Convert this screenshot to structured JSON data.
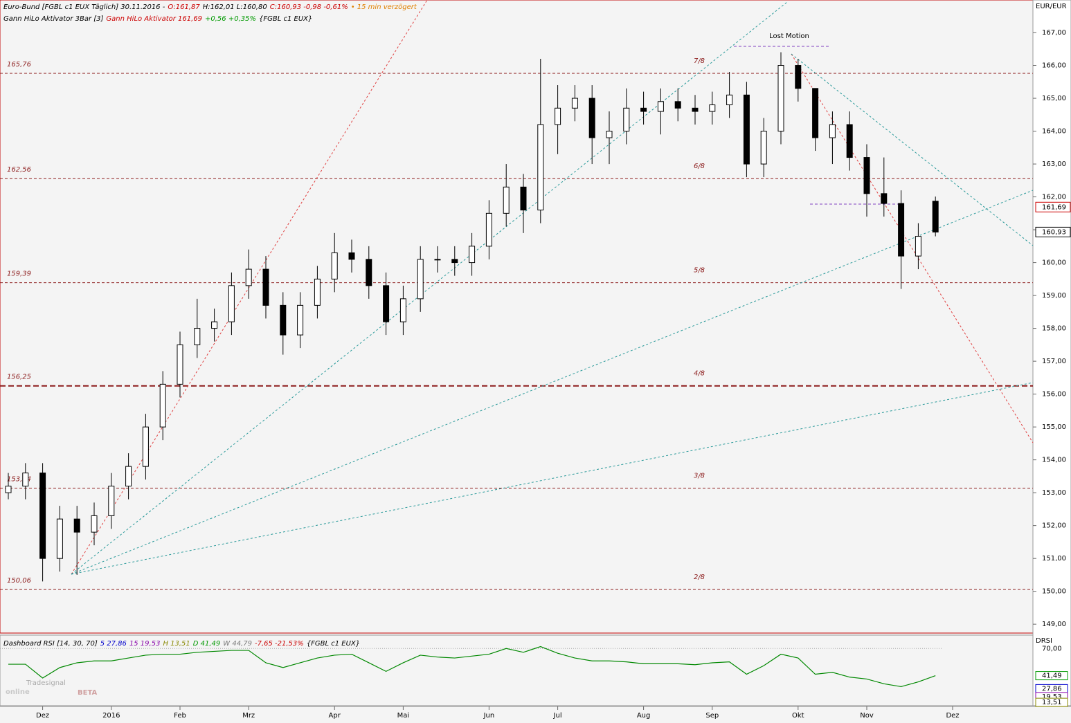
{
  "chart_data": [
    {
      "type": "candlestick",
      "title_lines": [
        [
          {
            "text": "Euro-Bund [FGBL c1 EUX Täglich] 30.11.2016 -",
            "color": "#000000"
          },
          {
            "text": "O:161,87",
            "color": "#cc0000"
          },
          {
            "text": "H:162,01 L:160,80",
            "color": "#000000"
          },
          {
            "text": "C:160,93 -0,98 -0,61%",
            "color": "#cc0000"
          },
          {
            "text": "• 15 min verzögert",
            "color": "#e08000"
          }
        ],
        [
          {
            "text": "Gann HiLo Aktivator 3Bar [3]",
            "color": "#000000"
          },
          {
            "text": "Gann HiLo Aktivator 161,69",
            "color": "#cc0000"
          },
          {
            "text": "+0,56 +0,35%",
            "color": "#009900"
          },
          {
            "text": "{FGBL c1 EUX}",
            "color": "#000000"
          }
        ]
      ],
      "unit": "EUR/EUR",
      "categories": [
        null,
        null,
        "Dez",
        null,
        null,
        null,
        "2016",
        null,
        null,
        null,
        "Feb",
        null,
        null,
        null,
        "Mrz",
        null,
        null,
        null,
        null,
        "Apr",
        null,
        null,
        null,
        "Mai",
        null,
        null,
        null,
        null,
        "Jun",
        null,
        null,
        null,
        "Jul",
        null,
        null,
        null,
        null,
        "Aug",
        null,
        null,
        null,
        "Sep",
        null,
        null,
        null,
        null,
        "Okt",
        null,
        null,
        null,
        "Nov",
        null,
        null,
        null,
        null,
        "Dez"
      ],
      "open": [
        153.0,
        153.2,
        153.6,
        151.0,
        152.2,
        151.8,
        152.3,
        153.2,
        153.8,
        155.0,
        156.3,
        157.5,
        158.0,
        158.2,
        159.3,
        159.8,
        158.7,
        157.8,
        158.7,
        159.5,
        160.3,
        160.1,
        159.3,
        158.2,
        158.9,
        160.1,
        160.1,
        160.0,
        160.5,
        161.5,
        162.3,
        161.6,
        164.2,
        164.7,
        165.0,
        163.8,
        164.0,
        164.7,
        164.6,
        164.9,
        164.7,
        164.6,
        164.8,
        165.1,
        163.0,
        164.0,
        166.0,
        165.3,
        163.8,
        164.2,
        163.2,
        162.1,
        161.8,
        160.2,
        161.87,
        null
      ],
      "high": [
        153.6,
        153.9,
        153.9,
        152.6,
        152.6,
        152.7,
        153.6,
        154.2,
        155.4,
        156.7,
        157.9,
        158.9,
        158.6,
        159.7,
        160.4,
        160.2,
        159.1,
        159.1,
        159.9,
        160.9,
        160.7,
        160.5,
        159.7,
        159.3,
        160.5,
        160.5,
        160.5,
        160.9,
        161.9,
        163.0,
        162.7,
        166.2,
        165.4,
        165.4,
        165.4,
        164.6,
        165.3,
        165.2,
        165.3,
        165.3,
        165.1,
        165.2,
        165.8,
        165.5,
        164.4,
        166.4,
        166.2,
        165.3,
        164.6,
        164.6,
        163.6,
        163.2,
        162.2,
        161.2,
        162.01,
        null
      ],
      "low": [
        152.8,
        152.8,
        150.3,
        150.6,
        150.5,
        151.4,
        151.9,
        152.8,
        153.4,
        154.6,
        155.9,
        157.1,
        157.6,
        157.8,
        158.9,
        158.3,
        157.2,
        157.4,
        158.3,
        159.1,
        159.7,
        158.9,
        157.8,
        157.8,
        158.5,
        159.7,
        159.6,
        159.6,
        160.1,
        161.1,
        160.9,
        161.2,
        163.3,
        164.3,
        163.0,
        163.0,
        163.6,
        164.2,
        163.9,
        164.3,
        164.2,
        164.2,
        164.4,
        162.6,
        162.6,
        163.6,
        164.9,
        163.4,
        163.0,
        162.8,
        161.4,
        161.4,
        159.2,
        159.8,
        160.8,
        null
      ],
      "close": [
        153.2,
        153.6,
        151.0,
        152.2,
        151.8,
        152.3,
        153.2,
        153.8,
        155.0,
        156.3,
        157.5,
        158.0,
        158.2,
        159.3,
        159.8,
        158.7,
        157.8,
        158.7,
        159.5,
        160.3,
        160.1,
        159.3,
        158.2,
        158.9,
        160.1,
        160.1,
        160.0,
        160.5,
        161.5,
        162.3,
        161.6,
        164.2,
        164.7,
        165.0,
        163.8,
        164.0,
        164.7,
        164.6,
        164.9,
        164.7,
        164.6,
        164.8,
        165.1,
        163.0,
        164.0,
        166.0,
        165.3,
        163.8,
        164.2,
        163.2,
        162.1,
        161.8,
        160.2,
        160.8,
        160.93,
        null
      ],
      "ylim": [
        148.73,
        167.99
      ],
      "yticks": [
        {
          "value": 149,
          "label": "149,00"
        },
        {
          "value": 150,
          "label": "150,00"
        },
        {
          "value": 151,
          "label": "151,00"
        },
        {
          "value": 152,
          "label": "152,00"
        },
        {
          "value": 153,
          "label": "153,00"
        },
        {
          "value": 154,
          "label": "154,00"
        },
        {
          "value": 155,
          "label": "155,00"
        },
        {
          "value": 156,
          "label": "156,00"
        },
        {
          "value": 157,
          "label": "157,00"
        },
        {
          "value": 158,
          "label": "158,00"
        },
        {
          "value": 159,
          "label": "159,00"
        },
        {
          "value": 160,
          "label": "160,00"
        },
        {
          "value": 161,
          "label": "161,00"
        },
        {
          "value": 162,
          "label": "162,00"
        },
        {
          "value": 163,
          "label": "163,00"
        },
        {
          "value": 164,
          "label": "164,00"
        },
        {
          "value": 165,
          "label": "165,00"
        },
        {
          "value": 166,
          "label": "166,00"
        },
        {
          "value": 167,
          "label": "167,00"
        }
      ],
      "levels": [
        {
          "value": 165.76,
          "label": "165,76",
          "fraction": "7/8"
        },
        {
          "value": 162.56,
          "label": "162,56",
          "fraction": "6/8"
        },
        {
          "value": 159.39,
          "label": "159,39",
          "fraction": "5/8"
        },
        {
          "value": 156.25,
          "label": "156,25",
          "fraction": "4/8"
        },
        {
          "value": 153.14,
          "label": "153,14",
          "fraction": "3/8"
        },
        {
          "value": 150.06,
          "label": "150,06",
          "fraction": "2/8"
        }
      ],
      "level_color": "#8b1a1a",
      "price_markers": [
        {
          "value": 161.69,
          "label": "161,69",
          "color": "#cc0000"
        },
        {
          "value": 160.93,
          "label": "160,93",
          "color": "#000000"
        }
      ],
      "annotation": "Lost Motion"
    },
    {
      "type": "line",
      "title_parts": [
        {
          "text": "Dashboard RSI [14, 30, 70]",
          "color": "#000000"
        },
        {
          "text": "5 27,86",
          "color": "#0000cc"
        },
        {
          "text": "15 19,53",
          "color": "#8800aa"
        },
        {
          "text": "H 13,51",
          "color": "#888800"
        },
        {
          "text": "D 41,49",
          "color": "#009900"
        },
        {
          "text": "W 44,79",
          "color": "#777777"
        },
        {
          "text": "-7,65 -21,53%",
          "color": "#cc0000"
        },
        {
          "text": "{FGBL c1 EUX}",
          "color": "#000000"
        }
      ],
      "axis_label": "DRSI",
      "values": [
        53.5,
        53.5,
        39,
        50,
        55,
        57,
        57,
        60,
        63,
        64,
        64,
        66,
        67,
        68,
        68,
        55,
        50,
        55,
        60,
        63,
        64,
        55,
        46,
        55,
        63,
        61,
        60,
        62,
        64,
        70,
        66,
        72,
        65,
        60,
        57,
        57,
        56,
        54,
        54,
        54,
        53,
        55,
        56,
        43,
        52,
        64,
        60,
        43,
        45,
        40,
        38,
        33,
        30,
        35,
        41.49,
        null
      ],
      "color": "#008800",
      "ylim": [
        10,
        84
      ],
      "yticks": [
        {
          "value": 70,
          "label": "70,00"
        }
      ],
      "markers": [
        {
          "value": 41.49,
          "label": "41,49",
          "color": "#009900"
        },
        {
          "value": 27.86,
          "label": "27,86",
          "color": "#0000cc"
        },
        {
          "value": 19.53,
          "label": "19,53",
          "color": "#8800aa"
        },
        {
          "value": 13.51,
          "label": "13,51",
          "color": "#888800"
        }
      ],
      "watermark": [
        "Tradesignal",
        "online",
        "BETA"
      ]
    }
  ]
}
